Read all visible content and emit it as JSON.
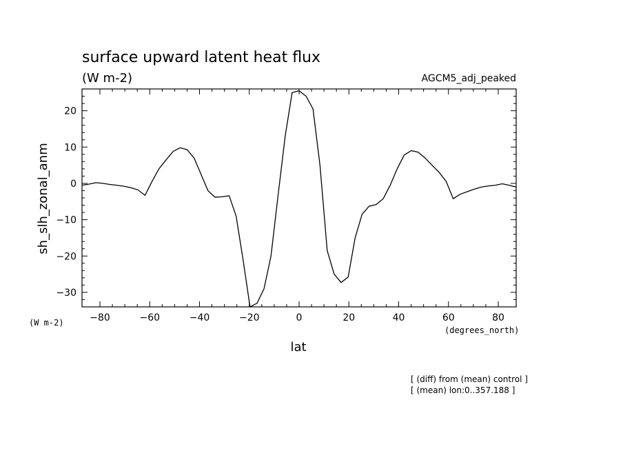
{
  "chart_data": {
    "type": "line",
    "title": "surface upward latent heat flux",
    "units": "(W m-2)",
    "experiment": "AGCM5_adj_peaked",
    "xlabel": "lat",
    "ylabel": "sh_slh_zonal_anm",
    "y_units_label": "(W m-2)",
    "x_units_label": "(degrees_north)",
    "xlim": [
      -87.2,
      87.2
    ],
    "ylim": [
      -34,
      26
    ],
    "xticks": [
      -80,
      -60,
      -40,
      -20,
      0,
      20,
      40,
      60,
      80
    ],
    "yticks": [
      -30,
      -20,
      -10,
      0,
      10,
      20
    ],
    "grid": false,
    "series": [
      {
        "x": [
          -87.2,
          -84.4,
          -81.6,
          -78.8,
          -76.0,
          -73.2,
          -70.3,
          -67.5,
          -64.7,
          -61.9,
          -59.1,
          -56.3,
          -53.4,
          -50.6,
          -47.8,
          -45.0,
          -42.2,
          -39.4,
          -36.6,
          -33.8,
          -31.0,
          -28.1,
          -25.3,
          -22.5,
          -19.7,
          -16.9,
          -14.1,
          -11.3,
          -8.4,
          -5.6,
          -2.8,
          0.0,
          2.8,
          5.6,
          8.4,
          11.3,
          14.1,
          16.9,
          19.7,
          22.5,
          25.3,
          28.1,
          31.0,
          33.8,
          36.6,
          39.4,
          42.2,
          45.0,
          47.8,
          50.6,
          53.4,
          56.3,
          59.1,
          61.9,
          64.7,
          67.5,
          70.3,
          73.2,
          76.0,
          78.8,
          81.6,
          84.4,
          87.2
        ],
        "y": [
          -0.5,
          -0.2,
          0.2,
          0.0,
          -0.3,
          -0.5,
          -0.8,
          -1.2,
          -1.8,
          -3.3,
          0.5,
          4.0,
          6.5,
          8.8,
          9.8,
          9.3,
          7.0,
          2.5,
          -2.0,
          -3.8,
          -3.7,
          -3.4,
          -9.0,
          -21.0,
          -34.0,
          -33.0,
          -29.0,
          -20.0,
          -3.0,
          13.0,
          25.0,
          25.5,
          24.0,
          20.5,
          5.0,
          -18.5,
          -25.0,
          -27.3,
          -25.8,
          -15.0,
          -8.5,
          -6.3,
          -5.8,
          -4.2,
          -0.5,
          4.0,
          7.8,
          9.0,
          8.6,
          7.0,
          5.0,
          3.0,
          0.5,
          -4.2,
          -3.0,
          -2.3,
          -1.6,
          -1.0,
          -0.7,
          -0.5,
          -0.1,
          -0.5,
          -1.0
        ]
      }
    ]
  },
  "notes": [
    "[ (diff) from (mean) control ]",
    "[ (mean) lon:0..357.188 ]"
  ]
}
